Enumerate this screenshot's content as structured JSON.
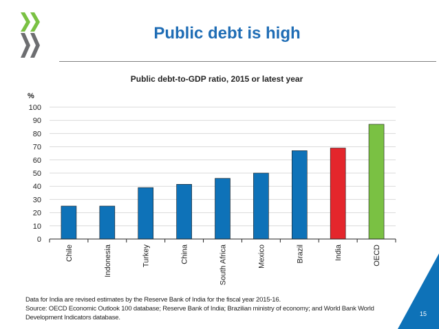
{
  "slide": {
    "title": "Public debt is high",
    "page_number": "15"
  },
  "colors": {
    "title": "#1f6db5",
    "bar_default": "#0e72b8",
    "bar_india": "#e4262c",
    "bar_oecd": "#7ac143",
    "logo_green": "#7ac143",
    "logo_gray": "#6d6e71",
    "corner": "#0e72b8"
  },
  "chart_data": {
    "type": "bar",
    "title": "Public debt-to-GDP ratio, 2015 or latest year",
    "ylabel": "%",
    "xlabel": "",
    "ylim": [
      0,
      100
    ],
    "yticks": [
      0,
      10,
      20,
      30,
      40,
      50,
      60,
      70,
      80,
      90,
      100
    ],
    "grid": true,
    "categories": [
      "Chile",
      "Indonesia",
      "Turkey",
      "China",
      "South Africa",
      "Mexico",
      "Brazil",
      "India",
      "OECD"
    ],
    "values": [
      25,
      25,
      39,
      41.5,
      46,
      50,
      67,
      69,
      87
    ],
    "highlight": {
      "India": "bar_india",
      "OECD": "bar_oecd"
    }
  },
  "notes": {
    "line1": "Data for India are revised estimates by the Reserve Bank of India for the fiscal year 2015-16.",
    "line2": "Source: OECD Economic Outlook 100 database; Reserve Bank of India; Brazilian ministry of economy; and World Bank World",
    "line3": "Development Indicators database."
  }
}
